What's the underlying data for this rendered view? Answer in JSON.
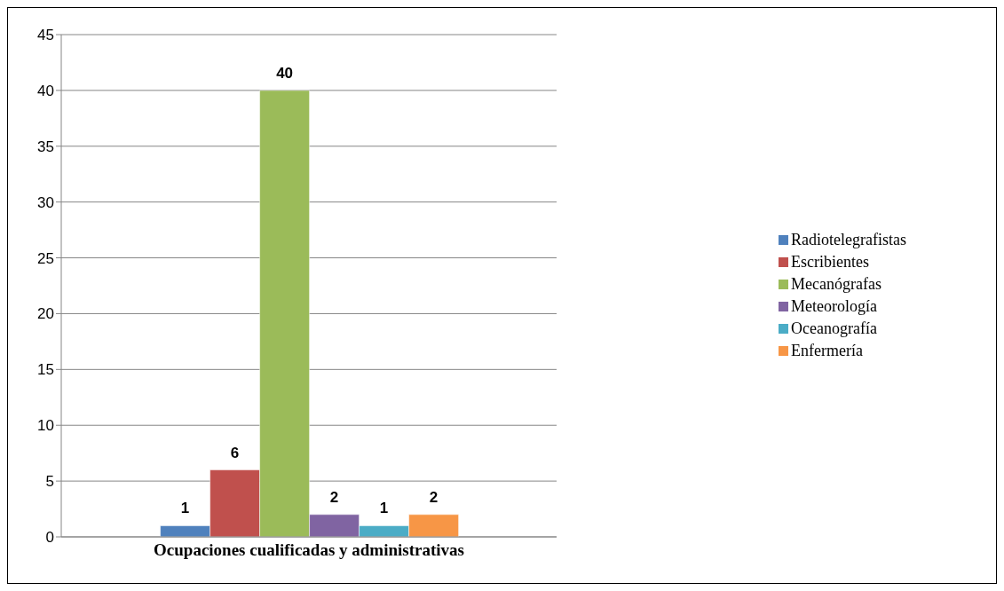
{
  "chart_data": {
    "type": "bar",
    "categories": [
      "Ocupaciones cualificadas y administrativas"
    ],
    "series": [
      {
        "name": "Radiotelegrafistas",
        "color": "#4f81bd",
        "values": [
          1
        ]
      },
      {
        "name": "Escribientes",
        "color": "#c0504d",
        "values": [
          6
        ]
      },
      {
        "name": "Mecanógrafas",
        "color": "#9bbb59",
        "values": [
          40
        ]
      },
      {
        "name": "Meteorología",
        "color": "#8064a2",
        "values": [
          2
        ]
      },
      {
        "name": "Oceanografía",
        "color": "#4bacc6",
        "values": [
          1
        ]
      },
      {
        "name": "Enfermería",
        "color": "#f79646",
        "values": [
          2
        ]
      }
    ],
    "ylim": [
      0,
      45
    ],
    "yticks": [
      0,
      5,
      10,
      15,
      20,
      25,
      30,
      35,
      40,
      45
    ],
    "grid": "y",
    "legend": "right",
    "data_labels": true
  }
}
